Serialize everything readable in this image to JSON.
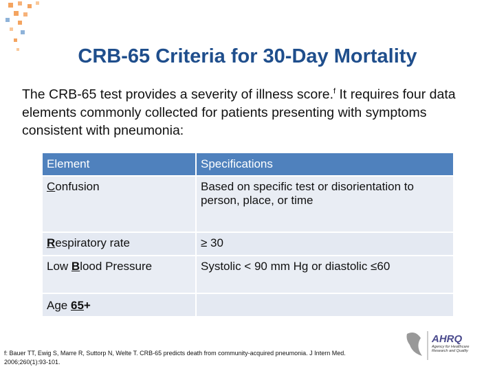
{
  "slide": {
    "title": "CRB-65 Criteria for 30-Day Mortality",
    "intro": {
      "before": "The CRB-65 test provides a severity of illness score.",
      "sup": "f",
      "after": " It requires four data elements commonly collected for patients presenting with symptoms consistent with pneumonia:"
    },
    "table": {
      "header": [
        "Element",
        "Specifications"
      ],
      "rows": [
        {
          "element": {
            "key": "C",
            "after": "onfusion"
          },
          "spec": "Based on specific test or disorientation to person, place, or time"
        },
        {
          "element": {
            "key": "R",
            "after": "espiratory rate"
          },
          "spec": "≥ 30"
        },
        {
          "element": {
            "before": "Low ",
            "key": "B",
            "after": "lood Pressure"
          },
          "spec": "Systolic < 90 mm Hg or diastolic ≤60"
        },
        {
          "element": {
            "before": "Age ",
            "key": "65",
            "after": "+"
          }
        }
      ]
    },
    "footnote": "f: Bauer TT, Ewig S, Marre R, Suttorp N, Welte T. CRB-65 predicts death from community-acquired pneumonia. J Intern Med. 2006;260(1):93-101.",
    "logo": {
      "name": "AHRQ",
      "caption": "Agency for Healthcare Research and Quality"
    }
  }
}
